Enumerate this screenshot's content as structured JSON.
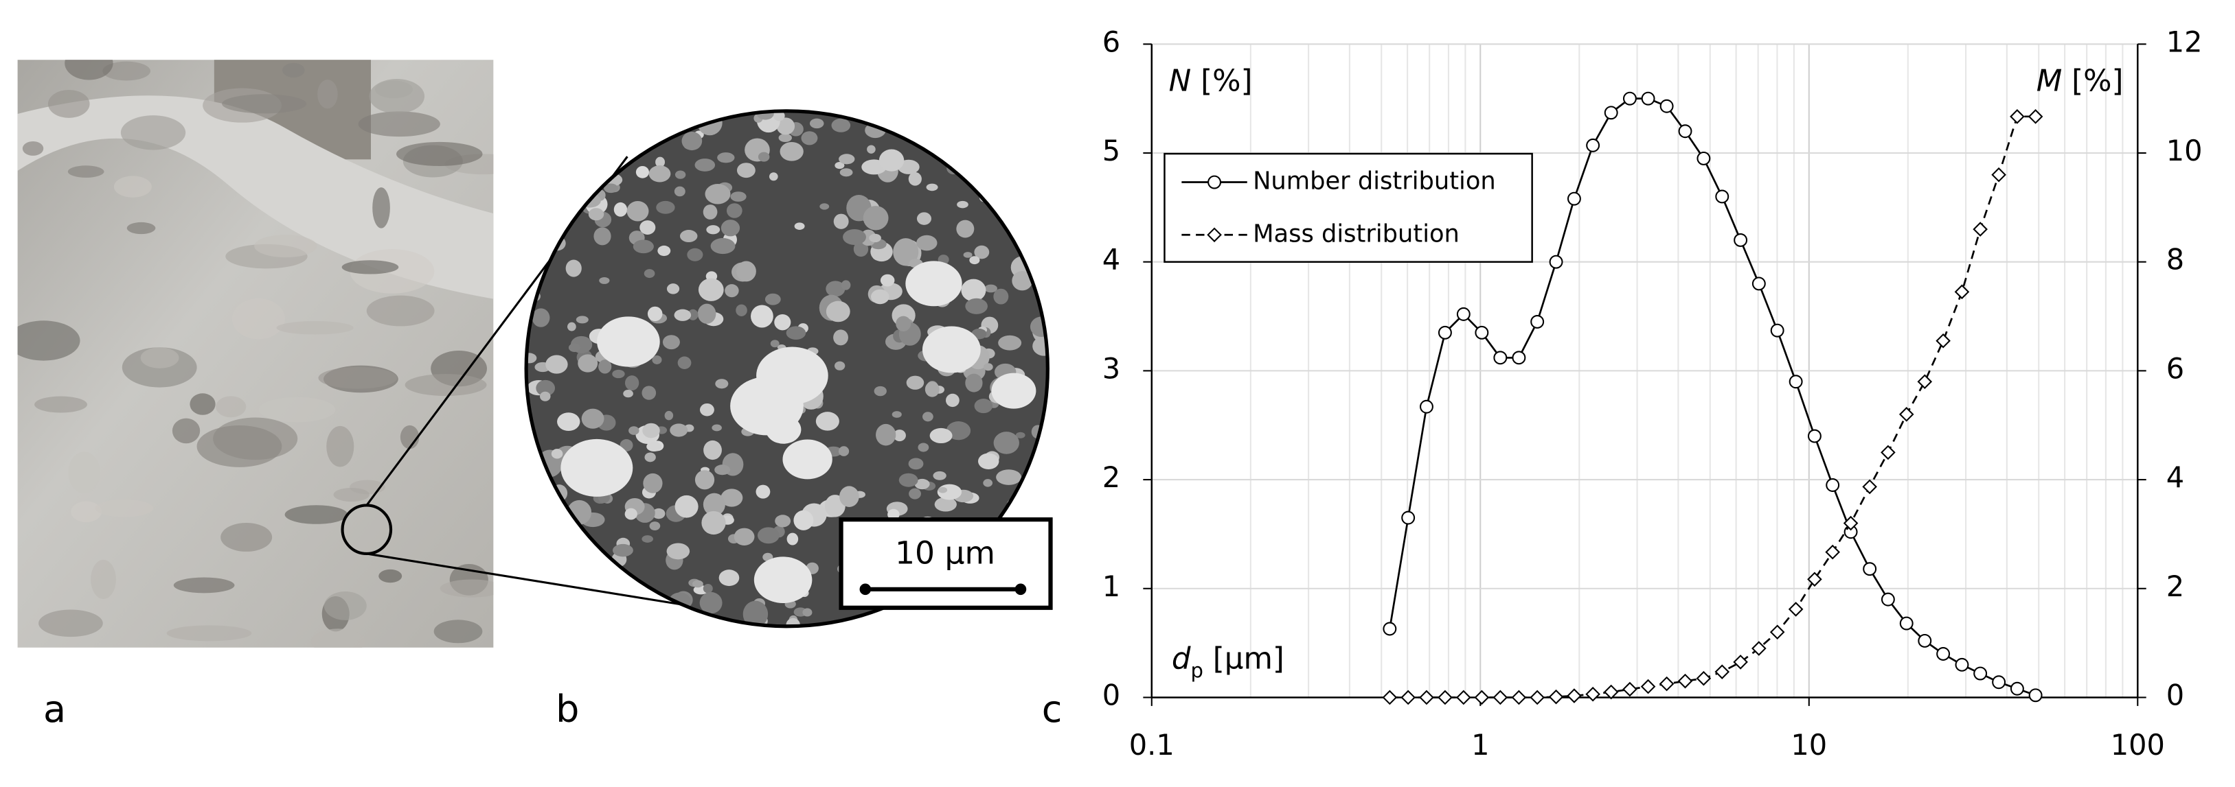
{
  "panel_labels": [
    "a",
    "b",
    "c"
  ],
  "scale_bar": "10 µm",
  "chart_data": {
    "type": "line",
    "xlabel": [
      "d",
      "p",
      " [µm]"
    ],
    "ylabel": [
      "N",
      " [%]"
    ],
    "y2label": [
      "M",
      " [%]"
    ],
    "log_x": true,
    "grid": true,
    "minor_grid": true,
    "legend": "upper left",
    "xlim": [
      0.1,
      100
    ],
    "xticks": [
      0.1,
      1,
      10,
      100
    ],
    "ylim": [
      0,
      6
    ],
    "yticks": [
      0,
      1,
      2,
      3,
      4,
      5,
      6
    ],
    "y2lim": [
      0,
      12
    ],
    "y2ticks": [
      0,
      2,
      4,
      6,
      8,
      10,
      12
    ],
    "x": [
      0.53,
      0.603,
      0.686,
      0.781,
      0.889,
      1.01,
      1.15,
      1.31,
      1.49,
      1.7,
      1.93,
      2.2,
      2.5,
      2.85,
      3.24,
      3.69,
      4.2,
      4.78,
      5.44,
      6.19,
      7.04,
      8.01,
      9.12,
      10.4,
      11.8,
      13.4,
      15.3,
      17.4,
      19.8,
      22.5,
      25.6,
      29.2,
      33.2,
      37.8,
      43.0,
      48.9
    ],
    "series": [
      {
        "name": "Number distribution",
        "color": "#000000",
        "marker": "circle",
        "dash": false,
        "values": [
          0.63,
          1.65,
          2.67,
          3.35,
          3.52,
          3.35,
          3.12,
          3.12,
          3.45,
          4.0,
          4.58,
          5.07,
          5.37,
          5.5,
          5.5,
          5.43,
          5.2,
          4.95,
          4.6,
          4.2,
          3.8,
          3.37,
          2.9,
          2.4,
          1.95,
          1.52,
          1.18,
          0.9,
          0.68,
          0.52,
          0.4,
          0.3,
          0.22,
          0.14,
          0.08,
          0.02
        ]
      },
      {
        "name": "Mass distribution",
        "color": "#000000",
        "marker": "diamond",
        "dash": true,
        "axis": "y2",
        "values": [
          0,
          0,
          0,
          0,
          0,
          0,
          0,
          0,
          0,
          0.01,
          0.03,
          0.06,
          0.1,
          0.15,
          0.2,
          0.25,
          0.3,
          0.35,
          0.47,
          0.65,
          0.9,
          1.2,
          1.62,
          2.17,
          2.67,
          3.2,
          3.87,
          4.5,
          5.2,
          5.8,
          6.55,
          7.45,
          8.6,
          9.6,
          10.67,
          10.67
        ]
      }
    ]
  }
}
